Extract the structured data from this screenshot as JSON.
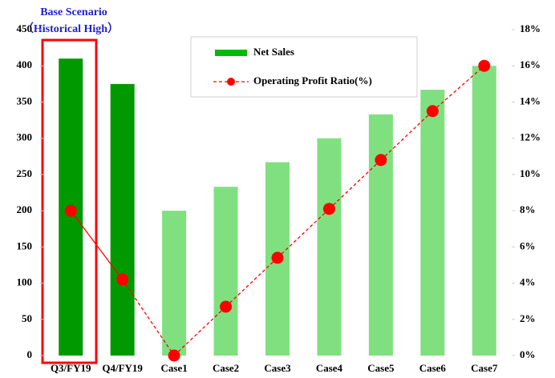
{
  "chart_data": {
    "type": "bar_line",
    "annotations": [
      "Base Scenario",
      "（Historical High）"
    ],
    "categories": [
      "Q3/FY19",
      "Q4/FY19",
      "Case1",
      "Case2",
      "Case3",
      "Case4",
      "Case5",
      "Case6",
      "Case7"
    ],
    "series": [
      {
        "name": "Net Sales",
        "type": "bar",
        "color": "#00bb00",
        "colors": [
          "#009a00",
          "#009a00",
          "#80e080",
          "#80e080",
          "#80e080",
          "#80e080",
          "#80e080",
          "#80e080",
          "#80e080"
        ],
        "values": [
          410,
          375,
          200,
          233,
          267,
          300,
          333,
          367,
          400
        ]
      },
      {
        "name": "Operating Profit Ratio(%)",
        "type": "line",
        "axis": "y2",
        "color": "#ff0000",
        "values": [
          8,
          4.2,
          0,
          2.7,
          5.4,
          8.1,
          10.8,
          13.5,
          16
        ]
      }
    ],
    "ylim": [
      0,
      450
    ],
    "yticks": [
      0,
      50,
      100,
      150,
      200,
      250,
      300,
      350,
      400,
      450
    ],
    "y2lim": [
      0,
      18
    ],
    "y2ticks": [
      {
        "value": 0,
        "label": "0%"
      },
      {
        "value": 2,
        "label": "2%"
      },
      {
        "value": 4,
        "label": "4%"
      },
      {
        "value": 6,
        "label": "6%"
      },
      {
        "value": 8,
        "label": "8%"
      },
      {
        "value": 10,
        "label": "10%"
      },
      {
        "value": 12,
        "label": "12%"
      },
      {
        "value": 14,
        "label": "14%"
      },
      {
        "value": 16,
        "label": "16%"
      },
      {
        "value": 18,
        "label": "18%"
      }
    ],
    "grid": false
  }
}
